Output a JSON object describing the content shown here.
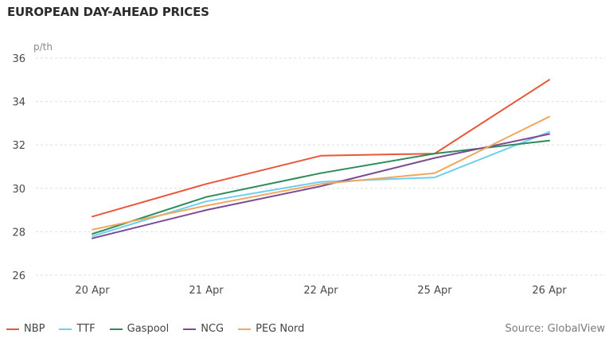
{
  "chart_data": {
    "type": "line",
    "title": "EUROPEAN DAY-AHEAD PRICES",
    "ylabel": "p/th",
    "xlabel": "",
    "categories": [
      "20 Apr",
      "21 Apr",
      "22 Apr",
      "25 Apr",
      "26 Apr"
    ],
    "ylim": [
      26,
      36
    ],
    "yticks": [
      26,
      28,
      30,
      32,
      34,
      36
    ],
    "grid": "horizontal dashed",
    "legend_position": "bottom-left",
    "source": "Source: GlobalView",
    "series": [
      {
        "name": "NBP",
        "color": "#e8573a",
        "values": [
          28.7,
          30.2,
          31.5,
          31.6,
          35.0
        ]
      },
      {
        "name": "TTF",
        "color": "#6ecff0",
        "values": [
          27.8,
          29.4,
          30.3,
          30.5,
          32.6
        ]
      },
      {
        "name": "Gaspool",
        "color": "#2e8b5a",
        "values": [
          27.9,
          29.6,
          30.7,
          31.6,
          32.2
        ]
      },
      {
        "name": "NCG",
        "color": "#7b4b94",
        "values": [
          27.7,
          29.0,
          30.1,
          31.4,
          32.5
        ]
      },
      {
        "name": "PEG Nord",
        "color": "#f0a860",
        "values": [
          28.1,
          29.2,
          30.2,
          30.7,
          33.3
        ]
      }
    ]
  }
}
